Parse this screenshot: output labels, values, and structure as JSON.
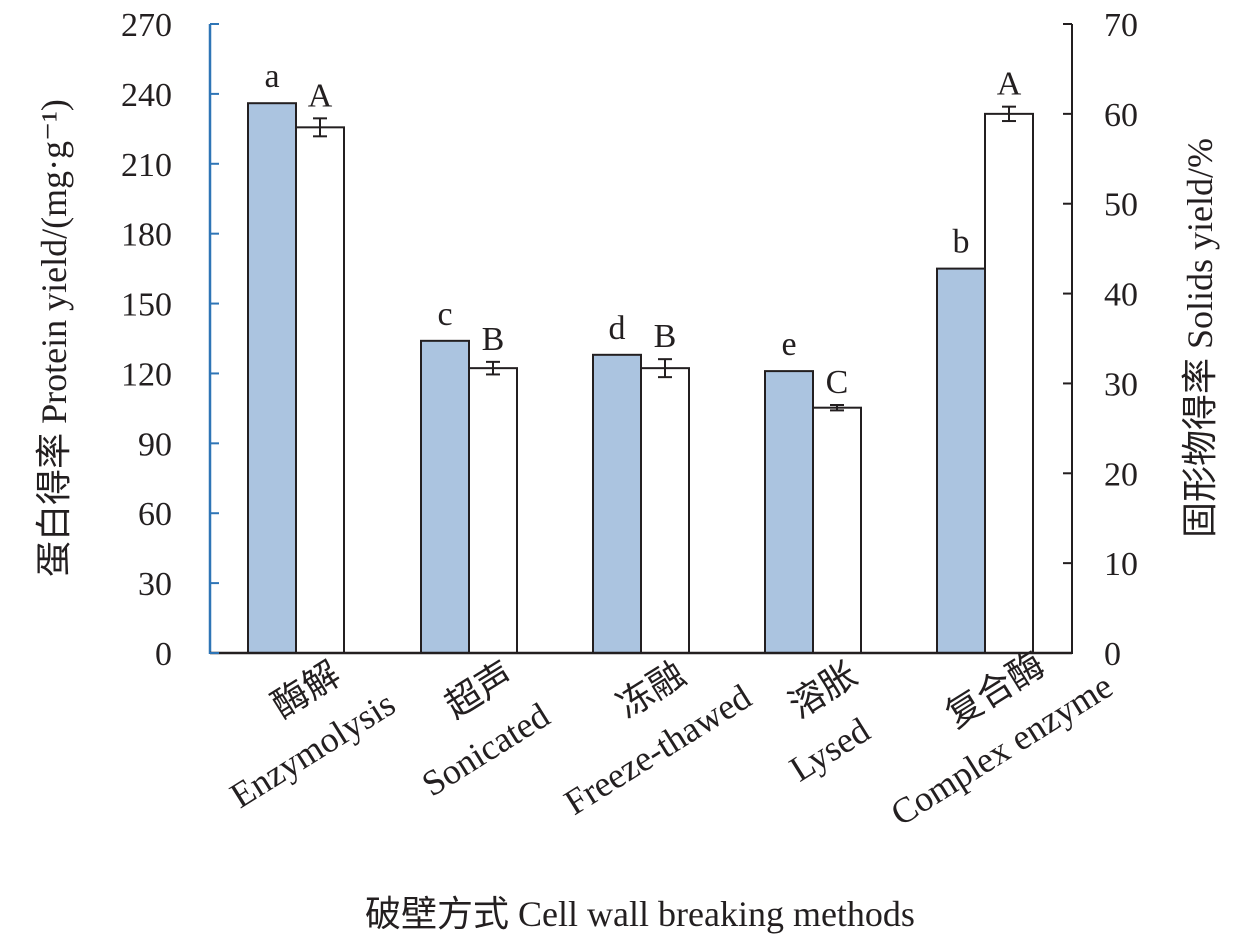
{
  "chart_data": {
    "type": "bar",
    "categories": [
      {
        "zh": "酶解",
        "en": "Enzymolysis"
      },
      {
        "zh": "超声",
        "en": "Sonicated"
      },
      {
        "zh": "冻融",
        "en": "Freeze-thawed"
      },
      {
        "zh": "溶胀",
        "en": "Lysed"
      },
      {
        "zh": "复合酶",
        "en": "Complex enzyme"
      }
    ],
    "series": [
      {
        "axis": "left",
        "color": "#abc4e0",
        "values": [
          236,
          134,
          128,
          121,
          165
        ],
        "letters": [
          "a",
          "c",
          "d",
          "e",
          "b"
        ]
      },
      {
        "axis": "right",
        "color": "#ffffff",
        "values": [
          58.5,
          31.7,
          31.7,
          27.3,
          60.0
        ],
        "errors": [
          1.0,
          0.7,
          1.0,
          0.3,
          0.8
        ],
        "letters": [
          "A",
          "B",
          "B",
          "C",
          "A"
        ]
      }
    ],
    "xlabel": "破壁方式 Cell wall breaking methods",
    "ylabel_left": "蛋白得率 Protein yield/(mg·g⁻¹)",
    "ylabel_right": "固形物得率 Solids yield/%",
    "ylim_left": [
      0,
      270
    ],
    "yticks_left": [
      0,
      30,
      60,
      90,
      120,
      150,
      180,
      210,
      240,
      270
    ],
    "ylim_right": [
      0,
      70
    ],
    "yticks_right": [
      0,
      10,
      20,
      30,
      40,
      50,
      60,
      70
    ],
    "left_axis_color": "#2e75b6",
    "bar_stroke_color": "#231f20"
  }
}
